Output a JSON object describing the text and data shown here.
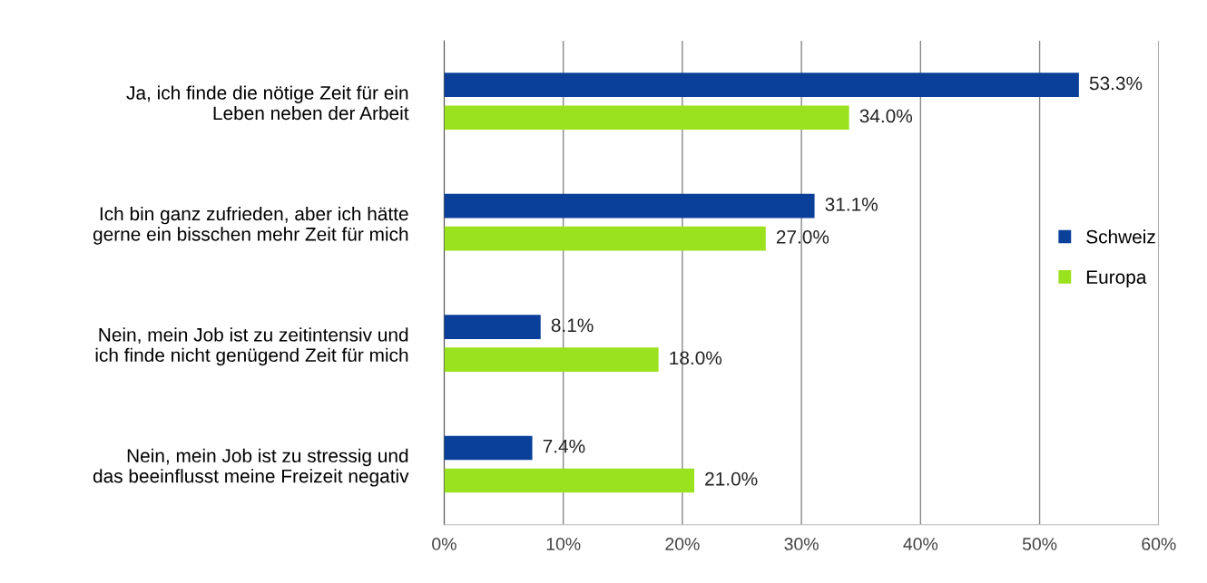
{
  "chart_data": {
    "type": "bar",
    "orientation": "horizontal",
    "categories": [
      "Ja, ich finde die nötige Zeit für ein\nLeben neben der Arbeit",
      "Ich bin ganz zufrieden, aber ich hätte\ngerne ein bisschen mehr Zeit für mich",
      "Nein, mein Job ist zu zeitintensiv und\nich finde nicht genügend Zeit für mich",
      "Nein, mein Job ist zu stressig und\ndas beeinflusst meine Freizeit negativ"
    ],
    "series": [
      {
        "name": "Schweiz",
        "color": "#0a3f9a",
        "values": [
          53.3,
          31.1,
          8.1,
          7.4
        ],
        "value_labels": [
          "53.3%",
          "31.1%",
          "8.1%",
          "7.4%"
        ]
      },
      {
        "name": "Europa",
        "color": "#9be21e",
        "values": [
          34.0,
          27.0,
          18.0,
          21.0
        ],
        "value_labels": [
          "34.0%",
          "27.0%",
          "18.0%",
          "21.0%"
        ]
      }
    ],
    "xlim": [
      0,
      60
    ],
    "xticks": [
      {
        "value": 0,
        "label": "0%"
      },
      {
        "value": 10,
        "label": "10%"
      },
      {
        "value": 20,
        "label": "20%"
      },
      {
        "value": 30,
        "label": "30%"
      },
      {
        "value": 40,
        "label": "40%"
      },
      {
        "value": 50,
        "label": "50%"
      },
      {
        "value": 60,
        "label": "60%"
      }
    ],
    "grid": "x",
    "legend": "right"
  }
}
